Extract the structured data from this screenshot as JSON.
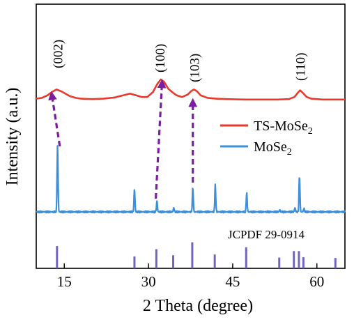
{
  "chart_data": {
    "type": "line",
    "xlabel": "2 Theta (degree)",
    "ylabel": "Intensity (a.u.)",
    "xlim": [
      10,
      65
    ],
    "xticks": [
      15,
      30,
      45,
      60
    ],
    "y_ticks_shown": false,
    "grid": false,
    "legend": {
      "position": "right, middle",
      "items": [
        {
          "label_main": "TS-MoSe",
          "label_sub": "2",
          "color": "#e8392c"
        },
        {
          "label_main": "MoSe",
          "label_sub": "2",
          "color": "#3d8fd9"
        }
      ]
    },
    "series": [
      {
        "name": "TS-MoSe2",
        "color": "#e8392c",
        "points": [
          [
            10,
            0.02
          ],
          [
            11,
            0.03
          ],
          [
            12,
            0.06
          ],
          [
            12.8,
            0.1
          ],
          [
            13.6,
            0.13
          ],
          [
            14.4,
            0.11
          ],
          [
            15.2,
            0.08
          ],
          [
            16,
            0.05
          ],
          [
            17,
            0.03
          ],
          [
            18,
            0.02
          ],
          [
            20,
            0.015
          ],
          [
            22,
            0.02
          ],
          [
            24,
            0.035
          ],
          [
            25.5,
            0.06
          ],
          [
            26.7,
            0.08
          ],
          [
            27.8,
            0.06
          ],
          [
            28.8,
            0.04
          ],
          [
            29.8,
            0.04
          ],
          [
            30.8,
            0.1
          ],
          [
            31.6,
            0.2
          ],
          [
            32.2,
            0.25
          ],
          [
            32.8,
            0.22
          ],
          [
            33.5,
            0.14
          ],
          [
            34.2,
            0.1
          ],
          [
            35,
            0.06
          ],
          [
            36,
            0.04
          ],
          [
            37,
            0.07
          ],
          [
            37.6,
            0.11
          ],
          [
            38.1,
            0.13
          ],
          [
            38.6,
            0.11
          ],
          [
            39.3,
            0.06
          ],
          [
            40.5,
            0.03
          ],
          [
            42,
            0.02
          ],
          [
            44,
            0.015
          ],
          [
            47,
            0.01
          ],
          [
            50,
            0.01
          ],
          [
            53,
            0.01
          ],
          [
            55,
            0.015
          ],
          [
            56,
            0.04
          ],
          [
            56.6,
            0.09
          ],
          [
            57,
            0.12
          ],
          [
            57.5,
            0.09
          ],
          [
            58.2,
            0.04
          ],
          [
            59,
            0.02
          ],
          [
            61,
            0.01
          ],
          [
            63,
            0.01
          ],
          [
            65,
            0.01
          ]
        ]
      },
      {
        "name": "MoSe2",
        "color": "#3d8fd9",
        "baseline": 0,
        "peaks": [
          {
            "x": 13.8,
            "h": 1.0,
            "w": 0.12
          },
          {
            "x": 27.5,
            "h": 0.34,
            "w": 0.12
          },
          {
            "x": 31.5,
            "h": 0.16,
            "w": 0.12
          },
          {
            "x": 34.5,
            "h": 0.06,
            "w": 0.12
          },
          {
            "x": 37.9,
            "h": 0.37,
            "w": 0.12
          },
          {
            "x": 41.9,
            "h": 0.4,
            "w": 0.12
          },
          {
            "x": 47.5,
            "h": 0.28,
            "w": 0.12
          },
          {
            "x": 53.4,
            "h": 0.03,
            "w": 0.12
          },
          {
            "x": 56.1,
            "h": 0.06,
            "w": 0.12
          },
          {
            "x": 56.9,
            "h": 0.54,
            "w": 0.12
          },
          {
            "x": 57.7,
            "h": 0.05,
            "w": 0.12
          }
        ]
      }
    ],
    "reference": {
      "label": "JCPDF 29-0914",
      "color": "#7066bd",
      "lines": [
        {
          "x": 13.7,
          "h": 0.58
        },
        {
          "x": 27.5,
          "h": 0.31
        },
        {
          "x": 31.4,
          "h": 0.5
        },
        {
          "x": 34.4,
          "h": 0.34
        },
        {
          "x": 37.8,
          "h": 0.68
        },
        {
          "x": 41.8,
          "h": 0.36
        },
        {
          "x": 47.4,
          "h": 0.55
        },
        {
          "x": 53.3,
          "h": 0.28
        },
        {
          "x": 55.9,
          "h": 0.45
        },
        {
          "x": 56.8,
          "h": 0.45
        },
        {
          "x": 57.6,
          "h": 0.29
        },
        {
          "x": 63.3,
          "h": 0.27
        }
      ]
    },
    "peak_labels": [
      {
        "label": "(002)",
        "x": 13.8
      },
      {
        "label": "(100)",
        "x": 32.0
      },
      {
        "label": "(103)",
        "x": 38.1
      },
      {
        "label": "(110)",
        "x": 57.0
      }
    ],
    "arrows": [
      {
        "from_x": 14.2,
        "to_x": 12.8,
        "color": "#7b1fa2"
      },
      {
        "from_x": 31.3,
        "to_x": 32.4,
        "color": "#7b1fa2"
      },
      {
        "from_x": 37.9,
        "to_x": 37.9,
        "color": "#7b1fa2"
      }
    ]
  }
}
